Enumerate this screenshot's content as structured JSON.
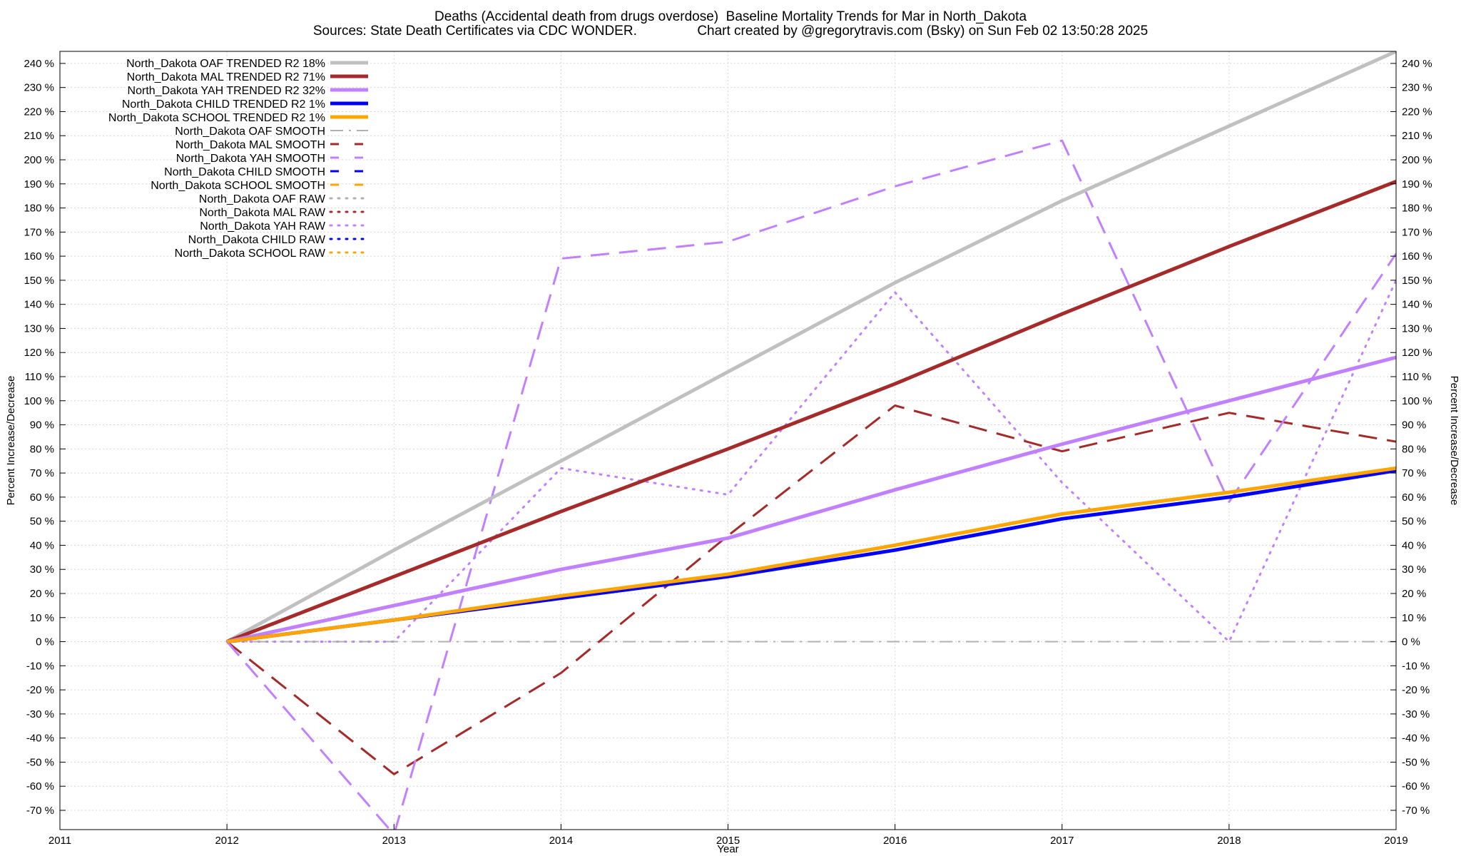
{
  "title_line1": "Deaths (Accidental death from drugs overdose)  Baseline Mortality Trends for Mar in North_Dakota",
  "title_line2": "Sources: State Death Certificates via CDC WONDER.                Chart created by @gregorytravis.com (Bsky) on Sun Feb 02 13:50:28 2025",
  "chart_data": {
    "type": "line",
    "xlabel": "Year",
    "ylabel": "Percent Increase/Decrease",
    "xlim": [
      2011,
      2019
    ],
    "ylim": [
      -78,
      245
    ],
    "x_ticks": [
      2011,
      2012,
      2013,
      2014,
      2015,
      2016,
      2017,
      2018,
      2019
    ],
    "y_ticks": [
      240,
      230,
      220,
      210,
      200,
      190,
      180,
      170,
      160,
      150,
      140,
      130,
      120,
      110,
      100,
      90,
      80,
      70,
      60,
      50,
      40,
      30,
      20,
      10,
      0,
      -10,
      -20,
      -30,
      -40,
      -50,
      -60,
      -70
    ],
    "y_tick_suffix": " %",
    "grid": true,
    "right_axis_mirror": true,
    "legend_position": "top-left",
    "series": [
      {
        "name": "North_Dakota OAF TRENDED R2  18%",
        "style": "solid",
        "color": "#c0c0c0",
        "x": [
          2012,
          2013,
          2014,
          2015,
          2016,
          2017,
          2018,
          2019
        ],
        "y": [
          0,
          38,
          75,
          112,
          149,
          183,
          214,
          245
        ]
      },
      {
        "name": "North_Dakota MAL TRENDED R2  71%",
        "style": "solid",
        "color": "#a52a2a",
        "x": [
          2012,
          2013,
          2014,
          2015,
          2016,
          2017,
          2018,
          2019
        ],
        "y": [
          0,
          27,
          54,
          80,
          107,
          136,
          164,
          191
        ]
      },
      {
        "name": "North_Dakota YAH TRENDED R2  32%",
        "style": "solid",
        "color": "#c080ff",
        "x": [
          2012,
          2013,
          2014,
          2015,
          2016,
          2017,
          2018,
          2019
        ],
        "y": [
          0,
          15,
          30,
          43,
          63,
          82,
          100,
          118
        ]
      },
      {
        "name": "North_Dakota CHILD TRENDED R2   1%",
        "style": "solid",
        "color": "#0000ff",
        "x": [
          2012,
          2013,
          2014,
          2015,
          2016,
          2017,
          2018,
          2019
        ],
        "y": [
          0,
          9,
          18,
          27,
          38,
          51,
          60,
          71
        ]
      },
      {
        "name": "North_Dakota SCHOOL TRENDED R2   1%",
        "style": "solid",
        "color": "#ffa500",
        "x": [
          2012,
          2013,
          2014,
          2015,
          2016,
          2017,
          2018,
          2019
        ],
        "y": [
          0,
          9,
          19,
          28,
          40,
          53,
          62,
          72
        ]
      },
      {
        "name": "North_Dakota OAF SMOOTH",
        "style": "dashdot",
        "color": "#b0b0b0",
        "x": [
          2012,
          2013,
          2014,
          2015,
          2016,
          2017,
          2018,
          2019
        ],
        "y": [
          0,
          0,
          0,
          0,
          0,
          0,
          0,
          0
        ]
      },
      {
        "name": "North_Dakota MAL SMOOTH",
        "style": "dashed",
        "color": "#a52a2a",
        "x": [
          2012,
          2013,
          2014,
          2015,
          2016,
          2017,
          2018,
          2019
        ],
        "y": [
          0,
          -55,
          -13,
          44,
          98,
          79,
          95,
          83
        ]
      },
      {
        "name": "North_Dakota YAH SMOOTH",
        "style": "dashed",
        "color": "#c080ff",
        "x": [
          2012,
          2013,
          2014,
          2015,
          2016,
          2017,
          2018,
          2019
        ],
        "y": [
          0,
          -80,
          159,
          166,
          189,
          208,
          58,
          161
        ]
      },
      {
        "name": "North_Dakota CHILD SMOOTH",
        "style": "dashed",
        "color": "#0000ff",
        "x": [],
        "y": []
      },
      {
        "name": "North_Dakota SCHOOL SMOOTH",
        "style": "dashed",
        "color": "#ffa500",
        "x": [],
        "y": []
      },
      {
        "name": "North_Dakota OAF RAW",
        "style": "dotted",
        "color": "#b0b0b0",
        "x": [],
        "y": []
      },
      {
        "name": "North_Dakota MAL RAW",
        "style": "dotted",
        "color": "#a52a2a",
        "x": [],
        "y": []
      },
      {
        "name": "North_Dakota YAH RAW",
        "style": "dotted",
        "color": "#c080ff",
        "x": [
          2012,
          2013,
          2014,
          2015,
          2016,
          2017,
          2018,
          2019
        ],
        "y": [
          0,
          0,
          72,
          61,
          145,
          66,
          0,
          150
        ]
      },
      {
        "name": "North_Dakota CHILD RAW",
        "style": "dotted",
        "color": "#0000ff",
        "x": [],
        "y": []
      },
      {
        "name": "North_Dakota SCHOOL RAW",
        "style": "dotted",
        "color": "#ffa500",
        "x": [],
        "y": []
      }
    ]
  }
}
